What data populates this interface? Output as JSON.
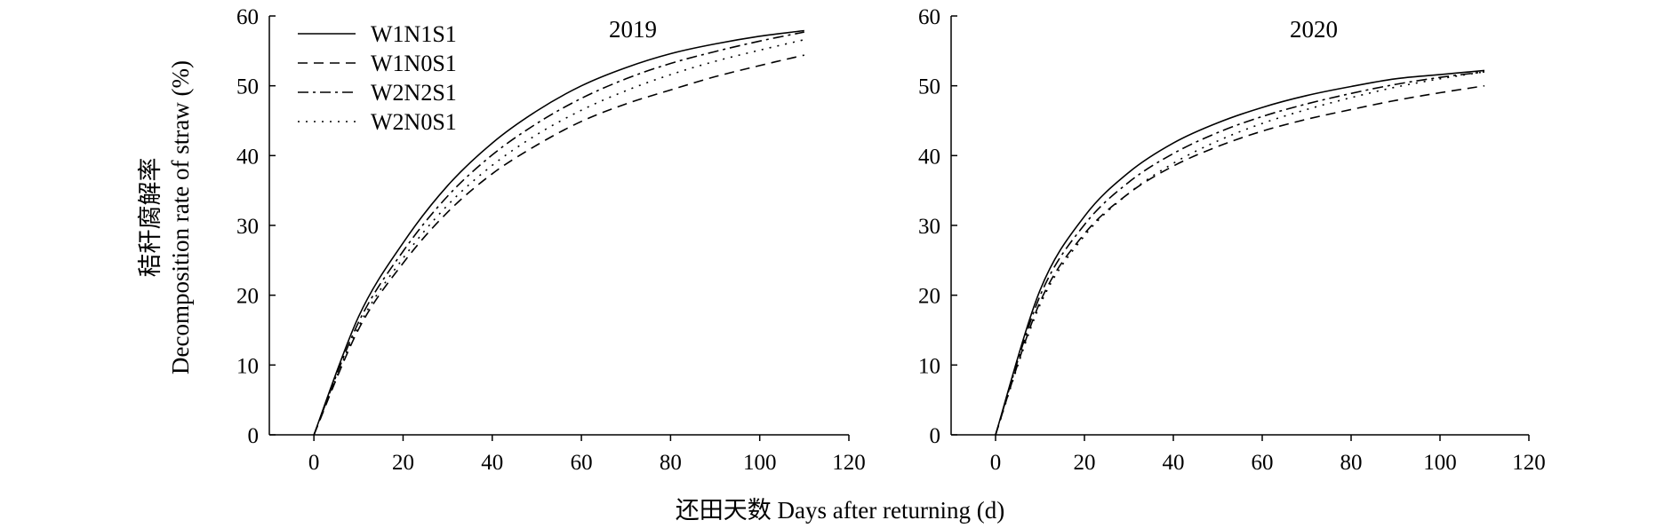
{
  "figure": {
    "ylabel_line1": "秸秆腐解率",
    "ylabel_line2": "Decomposition rate of straw (%)",
    "xlabel": "还田天数 Days after returning (d)"
  },
  "chart_data": [
    {
      "type": "line",
      "title": "2019",
      "xlim": [
        -10,
        120
      ],
      "ylim": [
        0,
        60
      ],
      "xticks": [
        0,
        20,
        40,
        60,
        80,
        100,
        120
      ],
      "yticks": [
        0,
        10,
        20,
        30,
        40,
        50,
        60
      ],
      "x": [
        0,
        10,
        20,
        30,
        40,
        50,
        60,
        70,
        80,
        90,
        100,
        110
      ],
      "series": [
        {
          "name": "W1N1S1",
          "dash": "solid",
          "values": [
            0,
            16.9,
            27.5,
            35.7,
            41.8,
            46.4,
            50.0,
            52.6,
            54.6,
            56.0,
            57.1,
            57.9
          ]
        },
        {
          "name": "W1N0S1",
          "dash": "dashed",
          "values": [
            0,
            15.1,
            24.6,
            31.9,
            37.4,
            41.5,
            44.9,
            47.4,
            49.4,
            51.3,
            52.9,
            54.4
          ]
        },
        {
          "name": "W2N2S1",
          "dash": "dashdot",
          "values": [
            0,
            16.1,
            26.3,
            34.2,
            40.1,
            44.6,
            48.2,
            51.0,
            53.2,
            54.9,
            56.4,
            57.7
          ]
        },
        {
          "name": "W2N0S1",
          "dash": "dotted",
          "values": [
            0,
            15.5,
            25.3,
            32.9,
            38.6,
            43.0,
            46.5,
            49.3,
            51.6,
            53.5,
            55.1,
            56.6
          ]
        }
      ],
      "legend_position": "top-left"
    },
    {
      "type": "line",
      "title": "2020",
      "xlim": [
        -10,
        120
      ],
      "ylim": [
        0,
        60
      ],
      "xticks": [
        0,
        20,
        40,
        60,
        80,
        100,
        120
      ],
      "yticks": [
        0,
        10,
        20,
        30,
        40,
        50,
        60
      ],
      "x": [
        0,
        10,
        20,
        30,
        40,
        50,
        60,
        70,
        80,
        90,
        100,
        110
      ],
      "series": [
        {
          "name": "W1N1S1",
          "dash": "solid",
          "values": [
            0,
            20.7,
            31.3,
            37.6,
            41.8,
            44.7,
            46.9,
            48.6,
            49.9,
            51.0,
            51.6,
            52.2
          ]
        },
        {
          "name": "W1N0S1",
          "dash": "dashed",
          "values": [
            0,
            19.0,
            28.8,
            34.6,
            38.5,
            41.3,
            43.5,
            45.2,
            46.6,
            47.9,
            49.0,
            50.0
          ]
        },
        {
          "name": "W2N2S1",
          "dash": "dashdot",
          "values": [
            0,
            19.9,
            30.1,
            36.2,
            40.3,
            43.3,
            45.6,
            47.4,
            48.9,
            50.2,
            51.2,
            52.0
          ]
        },
        {
          "name": "W2N0S1",
          "dash": "dotted",
          "values": [
            0,
            18.6,
            28.5,
            34.6,
            38.9,
            42.1,
            44.6,
            46.6,
            48.3,
            49.8,
            51.0,
            52.0
          ]
        }
      ]
    }
  ]
}
